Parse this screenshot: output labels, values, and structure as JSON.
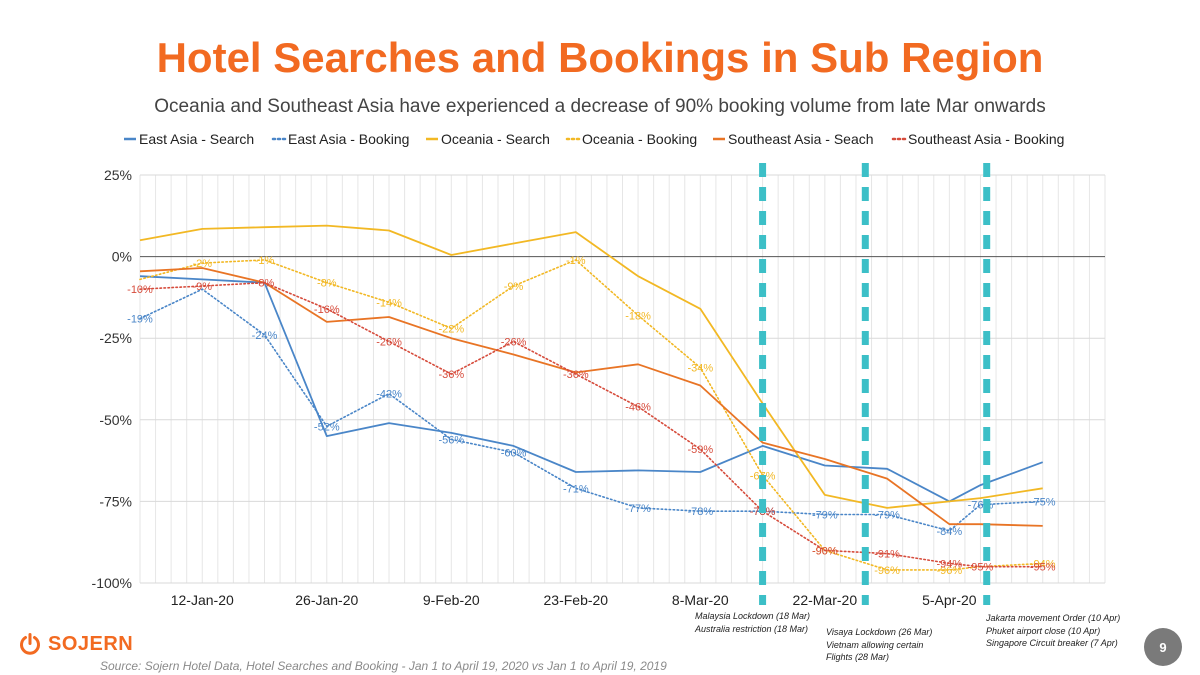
{
  "slide": {
    "title": "Hotel Searches and Bookings in Sub Region",
    "subtitle": "Oceania and Southeast Asia have experienced a decrease of 90% booking volume from late Mar onwards",
    "logo_text": "SOJERN",
    "source": "Source: Sojern Hotel Data, Hotel Searches and Booking - Jan 1 to April 19, 2020 vs Jan 1 to April 19, 2019",
    "page_number": "9",
    "accent_color": "#f26a21"
  },
  "annotations": [
    {
      "lines": [
        "Malaysia Lockdown (18 Mar)",
        "Australia restriction (18 Mar)"
      ]
    },
    {
      "lines": [
        "Visaya Lockdown (26 Mar)",
        "Vietnam allowing certain",
        "Flights (28 Mar)"
      ]
    },
    {
      "lines": [
        "Jakarta movement Order (10 Apr)",
        "Phuket airport close (10 Apr)",
        "Singapore Circuit breaker (7 Apr)"
      ]
    }
  ],
  "chart_data": {
    "type": "line",
    "title": "Hotel Searches and Bookings in Sub Region",
    "x_tick_labels": [
      "12-Jan-20",
      "26-Jan-20",
      "9-Feb-20",
      "23-Feb-20",
      "8-Mar-20",
      "22-Mar-20",
      "5-Apr-20"
    ],
    "x_tick_index": [
      1,
      3,
      5,
      7,
      9,
      11,
      13
    ],
    "x_range": [
      0,
      15.5
    ],
    "y_range": [
      -100,
      25
    ],
    "y_ticks": [
      25,
      0,
      -25,
      -50,
      -75,
      -100
    ],
    "y_tick_labels": [
      "25%",
      "0%",
      "-25%",
      "-50%",
      "-75%",
      "-100%"
    ],
    "grid": true,
    "legend_position": "top",
    "event_lines": [
      {
        "label": "Malaysia Lockdown / Australia restriction",
        "x_index": 10.0
      },
      {
        "label": "Visaya Lockdown / Vietnam flights",
        "x_index": 11.65
      },
      {
        "label": "Jakarta / Phuket / Singapore",
        "x_index": 13.6
      }
    ],
    "series": [
      {
        "name": "East Asia - Search",
        "color": "#4a86c8",
        "dashed": false,
        "points": [
          [
            0,
            -6
          ],
          [
            1,
            -7
          ],
          [
            2,
            -8
          ],
          [
            3,
            -55
          ],
          [
            4,
            -51
          ],
          [
            5,
            -54
          ],
          [
            6,
            -58
          ],
          [
            7,
            -66
          ],
          [
            8,
            -65.5
          ],
          [
            9,
            -66
          ],
          [
            10,
            -58
          ],
          [
            11,
            -64
          ],
          [
            12,
            -65
          ],
          [
            13,
            -75
          ],
          [
            13.5,
            -70
          ],
          [
            14.5,
            -63
          ]
        ]
      },
      {
        "name": "East Asia - Booking",
        "color": "#4a86c8",
        "dashed": true,
        "points": [
          [
            0,
            -19
          ],
          [
            1,
            -10
          ],
          [
            2,
            -24
          ],
          [
            3,
            -52
          ],
          [
            4,
            -42
          ],
          [
            5,
            -56
          ],
          [
            6,
            -60
          ],
          [
            7,
            -71
          ],
          [
            8,
            -77
          ],
          [
            9,
            -78
          ],
          [
            10,
            -78
          ],
          [
            11,
            -79
          ],
          [
            12,
            -79
          ],
          [
            13,
            -84
          ],
          [
            13.5,
            -76
          ],
          [
            14.5,
            -75
          ]
        ],
        "labels": [
          {
            "i": 0,
            "text": "-19%"
          },
          {
            "i": 2,
            "text": "-24%"
          },
          {
            "i": 3,
            "text": "-52%"
          },
          {
            "i": 4,
            "text": "-42%"
          },
          {
            "i": 5,
            "text": "-56%"
          },
          {
            "i": 6,
            "text": "-60%"
          },
          {
            "i": 7,
            "text": "-71%"
          },
          {
            "i": 8,
            "text": "-77%"
          },
          {
            "i": 9,
            "text": "-78%"
          },
          {
            "i": 10,
            "text": "-78%"
          },
          {
            "i": 11,
            "text": "-79%"
          },
          {
            "i": 12,
            "text": "-79%"
          },
          {
            "i": 13,
            "text": "-84%"
          },
          {
            "i": 14,
            "text": "-76%"
          },
          {
            "i": 15,
            "text": "-75%"
          }
        ]
      },
      {
        "name": "Oceania - Search",
        "color": "#f2b824",
        "dashed": false,
        "points": [
          [
            0,
            5
          ],
          [
            1,
            8.5
          ],
          [
            2,
            9
          ],
          [
            3,
            9.5
          ],
          [
            4,
            8
          ],
          [
            5,
            0.5
          ],
          [
            6,
            4
          ],
          [
            7,
            7.5
          ],
          [
            8,
            -6
          ],
          [
            9,
            -16
          ],
          [
            10,
            -45
          ],
          [
            11,
            -73
          ],
          [
            12,
            -77
          ],
          [
            13,
            -75
          ],
          [
            13.5,
            -74
          ],
          [
            14.5,
            -71
          ]
        ]
      },
      {
        "name": "Oceania - Booking",
        "color": "#f2b824",
        "dashed": true,
        "points": [
          [
            0,
            -7
          ],
          [
            1,
            -2
          ],
          [
            2,
            -1
          ],
          [
            3,
            -8
          ],
          [
            4,
            -14
          ],
          [
            5,
            -22
          ],
          [
            6,
            -9
          ],
          [
            7,
            -1
          ],
          [
            8,
            -18
          ],
          [
            9,
            -34
          ],
          [
            10,
            -67
          ],
          [
            11,
            -90
          ],
          [
            12,
            -96
          ],
          [
            13,
            -96
          ],
          [
            13.5,
            -95
          ],
          [
            14.5,
            -94
          ]
        ],
        "labels": [
          {
            "i": 1,
            "text": "-2%"
          },
          {
            "i": 2,
            "text": "-1%"
          },
          {
            "i": 3,
            "text": "-8%"
          },
          {
            "i": 4,
            "text": "-14%"
          },
          {
            "i": 5,
            "text": "-22%"
          },
          {
            "i": 6,
            "text": "-9%"
          },
          {
            "i": 7,
            "text": "-1%"
          },
          {
            "i": 8,
            "text": "-18%"
          },
          {
            "i": 9,
            "text": "-34%"
          },
          {
            "i": 10,
            "text": "-67%"
          },
          {
            "i": 11,
            "text": "-90%"
          },
          {
            "i": 12,
            "text": "-96%"
          },
          {
            "i": 13,
            "text": "-96%"
          },
          {
            "i": 15,
            "text": "-94%"
          }
        ]
      },
      {
        "name": "Southeast Asia - Seach",
        "color": "#e87425",
        "dashed": false,
        "points": [
          [
            0,
            -4.5
          ],
          [
            1,
            -3.5
          ],
          [
            2,
            -8
          ],
          [
            3,
            -20
          ],
          [
            4,
            -18.5
          ],
          [
            5,
            -25
          ],
          [
            6,
            -30
          ],
          [
            7,
            -35.5
          ],
          [
            8,
            -33
          ],
          [
            9,
            -39.5
          ],
          [
            10,
            -57
          ],
          [
            11,
            -62
          ],
          [
            12,
            -68
          ],
          [
            13,
            -82
          ],
          [
            13.5,
            -82
          ],
          [
            14.5,
            -82.5
          ]
        ]
      },
      {
        "name": "Southeast Asia - Booking",
        "color": "#d64b3b",
        "dashed": true,
        "points": [
          [
            0,
            -10
          ],
          [
            1,
            -9
          ],
          [
            2,
            -8
          ],
          [
            3,
            -16
          ],
          [
            4,
            -26
          ],
          [
            5,
            -36
          ],
          [
            6,
            -26
          ],
          [
            7,
            -36
          ],
          [
            8,
            -46
          ],
          [
            9,
            -59
          ],
          [
            10,
            -78
          ],
          [
            11,
            -90
          ],
          [
            12,
            -91
          ],
          [
            13,
            -94
          ],
          [
            13.5,
            -95
          ],
          [
            14.5,
            -95
          ]
        ],
        "labels": [
          {
            "i": 0,
            "text": "-10%"
          },
          {
            "i": 1,
            "text": "-9%"
          },
          {
            "i": 2,
            "text": "-8%"
          },
          {
            "i": 3,
            "text": "-16%"
          },
          {
            "i": 4,
            "text": "-26%"
          },
          {
            "i": 5,
            "text": "-36%"
          },
          {
            "i": 6,
            "text": "-26%"
          },
          {
            "i": 7,
            "text": "-36%"
          },
          {
            "i": 8,
            "text": "-46%"
          },
          {
            "i": 9,
            "text": "-59%"
          },
          {
            "i": 10,
            "text": "-78%"
          },
          {
            "i": 11,
            "text": "-90%"
          },
          {
            "i": 12,
            "text": "-91%"
          },
          {
            "i": 13,
            "text": "-94%"
          },
          {
            "i": 14,
            "text": "-95%"
          },
          {
            "i": 15,
            "text": "-95%"
          }
        ]
      }
    ]
  }
}
